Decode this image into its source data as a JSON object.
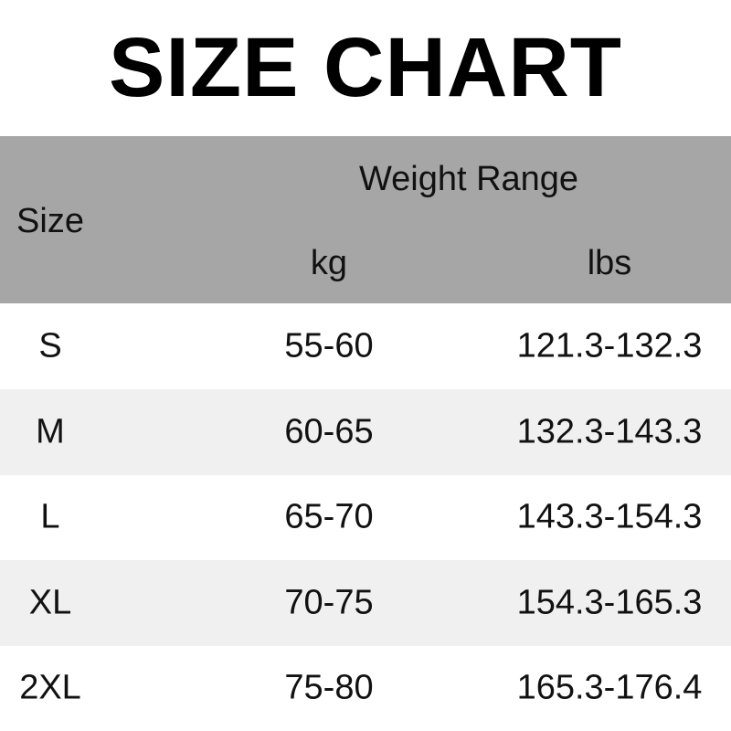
{
  "title": "SIZE CHART",
  "colors": {
    "header_bg": "#a6a6a6",
    "alt_row_bg": "#f0f0f0"
  },
  "table": {
    "headers": {
      "size": "Size",
      "group": "Weight Range",
      "kg": "kg",
      "lbs": "lbs"
    },
    "rows": [
      {
        "size": "S",
        "kg": "55-60",
        "lbs": "121.3-132.3"
      },
      {
        "size": "M",
        "kg": "60-65",
        "lbs": "132.3-143.3"
      },
      {
        "size": "L",
        "kg": "65-70",
        "lbs": "143.3-154.3"
      },
      {
        "size": "XL",
        "kg": "70-75",
        "lbs": "154.3-165.3"
      },
      {
        "size": "2XL",
        "kg": "75-80",
        "lbs": "165.3-176.4"
      }
    ]
  }
}
